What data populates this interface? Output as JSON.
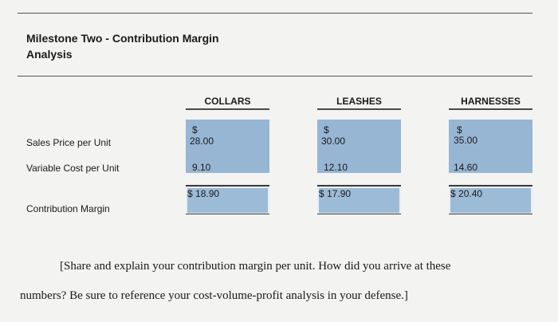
{
  "title": {
    "line1": "Milestone Two - Contribution Margin",
    "line2": "Analysis"
  },
  "columns": [
    "COLLARS",
    "LEASHES",
    "HARNESSES"
  ],
  "rows": {
    "sales_price": {
      "label": "Sales Price per Unit",
      "currency": [
        "$",
        "$",
        "$"
      ],
      "values": [
        "28.00",
        "30.00",
        "35.00"
      ]
    },
    "variable_cost": {
      "label": "Variable Cost per Unit",
      "values": [
        "9.10",
        "12.10",
        "14.60"
      ]
    },
    "contribution_margin": {
      "label": "Contribution Margin",
      "currency": [
        "$",
        "$",
        "$"
      ],
      "values": [
        "18.90",
        "17.90",
        "20.40"
      ]
    }
  },
  "note": {
    "line1": "[Share and explain your contribution margin per unit. How did you arrive at these",
    "line2": "numbers? Be sure to reference your cost-volume-profit analysis in your defense.]"
  },
  "colors": {
    "cell_fill": "#97b6d4",
    "background": "#f3f3f2"
  }
}
